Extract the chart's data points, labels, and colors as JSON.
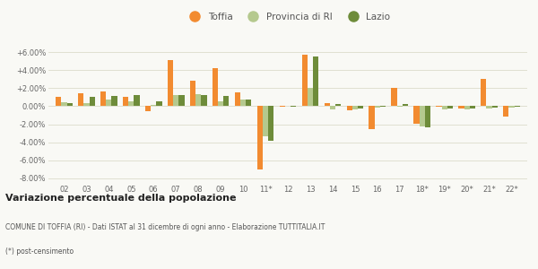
{
  "years": [
    "02",
    "03",
    "04",
    "05",
    "06",
    "07",
    "08",
    "09",
    "10",
    "11*",
    "12",
    "13",
    "14",
    "15",
    "16",
    "17",
    "18*",
    "19*",
    "20*",
    "21*",
    "22*"
  ],
  "toffia": [
    1.0,
    1.4,
    1.6,
    1.0,
    -0.6,
    5.1,
    2.8,
    4.2,
    1.5,
    -7.0,
    -0.1,
    5.7,
    0.3,
    -0.5,
    -2.5,
    2.0,
    -1.9,
    -0.05,
    -0.3,
    3.0,
    -1.1
  ],
  "provincia": [
    0.4,
    0.3,
    0.7,
    0.5,
    0.1,
    1.2,
    1.3,
    0.5,
    0.7,
    -3.3,
    0.0,
    2.0,
    -0.4,
    -0.4,
    -0.2,
    -0.1,
    -2.25,
    -0.4,
    -0.4,
    -0.3,
    -0.2
  ],
  "lazio": [
    0.3,
    1.0,
    1.1,
    1.2,
    0.5,
    1.2,
    1.2,
    1.1,
    0.7,
    -3.8,
    -0.1,
    5.5,
    0.2,
    -0.3,
    -0.1,
    0.2,
    -2.3,
    -0.3,
    -0.3,
    -0.2,
    -0.1
  ],
  "toffia_color": "#f28b30",
  "provincia_color": "#b5c98e",
  "lazio_color": "#6e8c3a",
  "bg_color": "#f9f9f5",
  "grid_color": "#e0e0d0",
  "ylim": [
    -8.5,
    7.0
  ],
  "yticks": [
    -8.0,
    -6.0,
    -4.0,
    -2.0,
    0.0,
    2.0,
    4.0,
    6.0
  ],
  "ytick_labels": [
    "-8.00%",
    "-6.00%",
    "-4.00%",
    "-2.00%",
    "0.00%",
    "+2.00%",
    "+4.00%",
    "+6.00%"
  ],
  "title1": "Variazione percentuale della popolazione",
  "subtitle": "COMUNE DI TOFFIA (RI) - Dati ISTAT al 31 dicembre di ogni anno - Elaborazione TUTTITALIA.IT",
  "footnote": "(*) post-censimento",
  "legend_labels": [
    "Toffia",
    "Provincia di RI",
    "Lazio"
  ]
}
